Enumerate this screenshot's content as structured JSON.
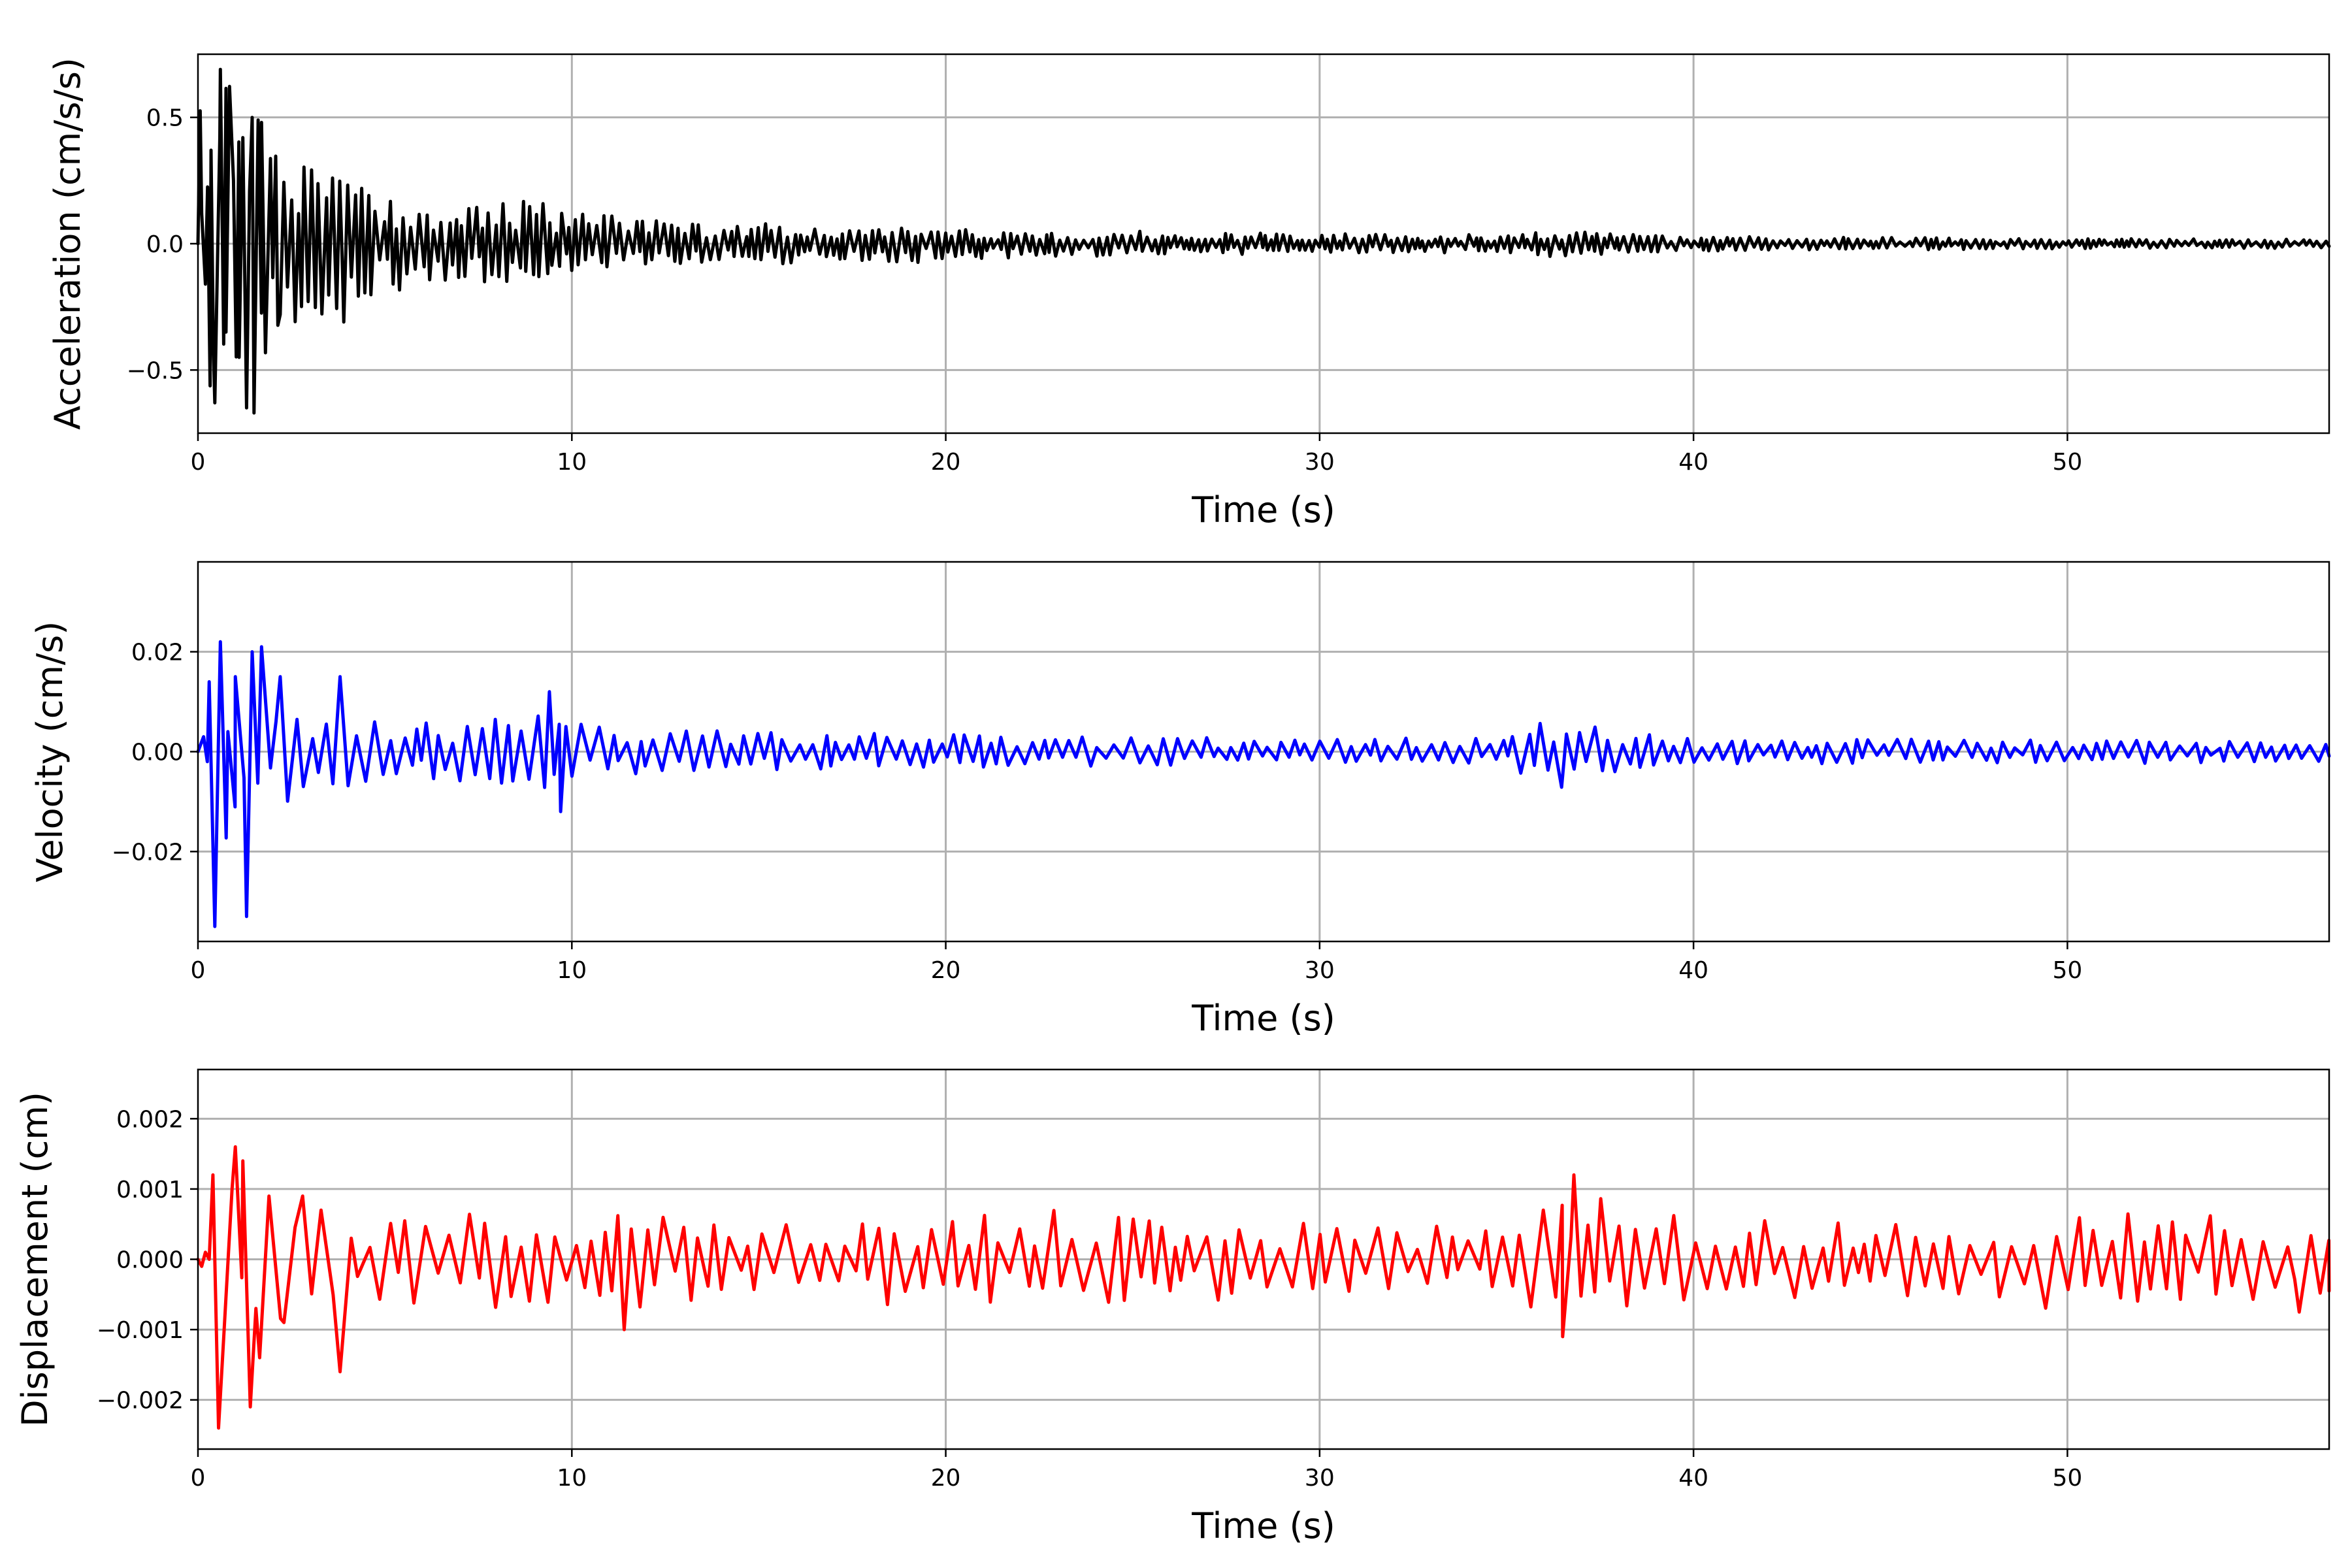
{
  "chart_data": [
    {
      "type": "line",
      "xlabel": "Time (s)",
      "ylabel": "Acceleration (cm/s/s)",
      "xlim": [
        0,
        57
      ],
      "ylim": [
        -0.75,
        0.75
      ],
      "xticks": [
        0,
        10,
        20,
        30,
        40,
        50
      ],
      "yticks": [
        -0.5,
        0.0,
        0.5
      ],
      "ytick_labels": [
        "−0.5",
        "0.0",
        "0.5"
      ],
      "grid": true,
      "series": [
        {
          "color": "#000000",
          "envelope": [
            [
              0,
              0.68
            ],
            [
              1,
              0.62
            ],
            [
              2,
              0.42
            ],
            [
              3,
              0.3
            ],
            [
              4,
              0.24
            ],
            [
              5,
              0.2
            ],
            [
              6,
              0.18
            ],
            [
              7,
              0.17
            ],
            [
              8,
              0.17
            ],
            [
              9,
              0.18
            ],
            [
              10,
              0.12
            ],
            [
              12,
              0.1
            ],
            [
              15,
              0.085
            ],
            [
              18,
              0.07
            ],
            [
              19,
              0.08
            ],
            [
              20,
              0.06
            ],
            [
              25,
              0.05
            ],
            [
              30,
              0.04
            ],
            [
              35,
              0.035
            ],
            [
              36.5,
              0.055
            ],
            [
              38,
              0.04
            ],
            [
              40,
              0.03
            ],
            [
              45,
              0.025
            ],
            [
              50,
              0.02
            ],
            [
              57,
              0.018
            ]
          ],
          "peaks": [
            [
              0.1,
              0.12
            ],
            [
              0.2,
              -0.16
            ],
            [
              0.35,
              0.37
            ],
            [
              0.45,
              -0.63
            ],
            [
              0.6,
              0.69
            ],
            [
              0.75,
              -0.35
            ],
            [
              0.95,
              0.25
            ],
            [
              1.1,
              -0.45
            ],
            [
              1.2,
              0.42
            ],
            [
              1.3,
              -0.65
            ],
            [
              1.45,
              0.5
            ],
            [
              1.5,
              -0.67
            ],
            [
              1.7,
              0.48
            ],
            [
              2.2,
              -0.28
            ],
            [
              3.6,
              0.26
            ],
            [
              3.9,
              -0.31
            ]
          ]
        }
      ]
    },
    {
      "type": "line",
      "xlabel": "Time (s)",
      "ylabel": "Velocity (cm/s)",
      "xlim": [
        0,
        57
      ],
      "ylim": [
        -0.038,
        0.038
      ],
      "xticks": [
        0,
        10,
        20,
        30,
        40,
        50
      ],
      "yticks": [
        -0.02,
        0.0,
        0.02
      ],
      "ytick_labels": [
        "−0.02",
        "0.00",
        "0.02"
      ],
      "grid": true,
      "series": [
        {
          "color": "#0000ff",
          "envelope": [
            [
              0,
              0.02
            ],
            [
              1,
              0.018
            ],
            [
              2,
              0.012
            ],
            [
              3,
              0.008
            ],
            [
              4,
              0.007
            ],
            [
              6,
              0.006
            ],
            [
              8,
              0.007
            ],
            [
              9,
              0.009
            ],
            [
              10,
              0.006
            ],
            [
              12,
              0.005
            ],
            [
              15,
              0.004
            ],
            [
              20,
              0.0035
            ],
            [
              25,
              0.003
            ],
            [
              30,
              0.0025
            ],
            [
              35,
              0.003
            ],
            [
              36.6,
              0.0085
            ],
            [
              38,
              0.004
            ],
            [
              40,
              0.0025
            ],
            [
              45,
              0.0025
            ],
            [
              50,
              0.0025
            ],
            [
              57,
              0.002
            ]
          ],
          "peaks": [
            [
              0.15,
              0.003
            ],
            [
              0.25,
              -0.002
            ],
            [
              0.3,
              0.014
            ],
            [
              0.45,
              -0.035
            ],
            [
              0.6,
              0.022
            ],
            [
              0.8,
              0.004
            ],
            [
              1.0,
              0.015
            ],
            [
              1.3,
              -0.033
            ],
            [
              1.45,
              0.02
            ],
            [
              1.7,
              0.021
            ],
            [
              2.2,
              0.015
            ],
            [
              3.8,
              0.015
            ],
            [
              9.4,
              0.012
            ],
            [
              9.7,
              -0.012
            ]
          ]
        }
      ]
    },
    {
      "type": "line",
      "xlabel": "Time (s)",
      "ylabel": "Displacement (cm)",
      "xlim": [
        0,
        57
      ],
      "ylim": [
        -0.0027,
        0.0027
      ],
      "xticks": [
        0,
        10,
        20,
        30,
        40,
        50
      ],
      "yticks": [
        -0.002,
        -0.001,
        0.0,
        0.001,
        0.002
      ],
      "ytick_labels": [
        "−0.002",
        "−0.001",
        "0.000",
        "0.001",
        "0.002"
      ],
      "grid": true,
      "series": [
        {
          "color": "#ff0000",
          "envelope": [
            [
              0,
              0.0012
            ],
            [
              2,
              0.0009
            ],
            [
              3,
              0.0008
            ],
            [
              5,
              0.0006
            ],
            [
              8,
              0.0007
            ],
            [
              10,
              0.0006
            ],
            [
              12,
              0.0007
            ],
            [
              15,
              0.0005
            ],
            [
              19,
              0.0007
            ],
            [
              24,
              0.0007
            ],
            [
              30,
              0.0005
            ],
            [
              35,
              0.0005
            ],
            [
              36.8,
              0.0012
            ],
            [
              38,
              0.0007
            ],
            [
              40,
              0.0006
            ],
            [
              45,
              0.0005
            ],
            [
              49.5,
              0.0007
            ],
            [
              55,
              0.0006
            ],
            [
              57,
              0.0005
            ]
          ],
          "peaks": [
            [
              0.1,
              -0.0001
            ],
            [
              0.2,
              0.0001
            ],
            [
              0.3,
              0.0
            ],
            [
              0.4,
              0.0012
            ],
            [
              0.55,
              -0.0024
            ],
            [
              0.7,
              -0.001
            ],
            [
              1.0,
              0.0016
            ],
            [
              1.2,
              0.0014
            ],
            [
              1.4,
              -0.0021
            ],
            [
              1.55,
              -0.0007
            ],
            [
              1.65,
              -0.0014
            ],
            [
              1.9,
              0.0009
            ],
            [
              2.3,
              -0.0009
            ],
            [
              2.8,
              0.0009
            ],
            [
              3.8,
              -0.0016
            ],
            [
              4.1,
              0.0003
            ],
            [
              11.4,
              -0.001
            ],
            [
              36.5,
              -0.0011
            ],
            [
              36.8,
              0.0012
            ],
            [
              56.2,
              -0.00075
            ]
          ]
        }
      ]
    }
  ]
}
